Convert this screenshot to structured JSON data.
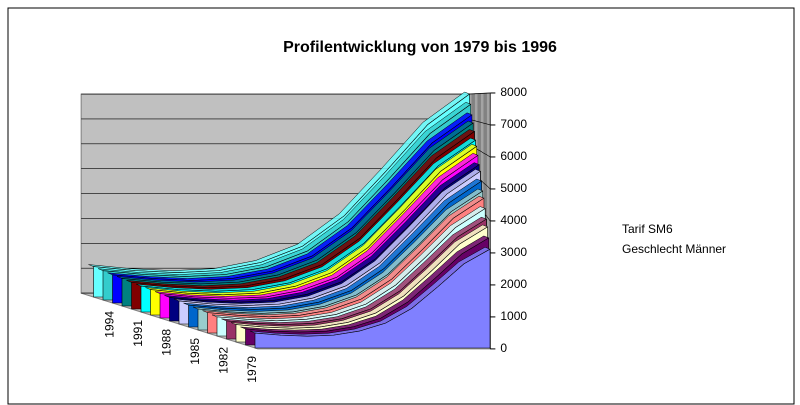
{
  "chart_data": {
    "type": "area3d",
    "title": "Profilentwicklung von 1979 bis 1996",
    "annotations": [
      "Tarif SM6",
      "Geschlecht Männer"
    ],
    "categories": [
      null,
      null,
      null,
      null,
      null,
      null,
      null,
      null,
      null,
      null
    ],
    "depth_categories": [
      "1979",
      null,
      null,
      "1982",
      null,
      null,
      "1985",
      null,
      null,
      "1988",
      null,
      null,
      "1991",
      null,
      null,
      "1994",
      null,
      null
    ],
    "ylim": [
      0,
      8000
    ],
    "yticks": [
      0,
      1000,
      2000,
      3000,
      4000,
      5000,
      6000,
      7000,
      8000
    ],
    "grid": true,
    "series": [
      {
        "color": "#8080ff",
        "values": [
          470,
          400,
          370,
          400,
          530,
          780,
          1240,
          1920,
          2640,
          3100
        ]
      },
      {
        "color": "#660066",
        "values": [
          510,
          440,
          410,
          440,
          580,
          850,
          1360,
          2110,
          2890,
          3400
        ]
      },
      {
        "color": "#ffffcc",
        "values": [
          560,
          480,
          440,
          480,
          630,
          930,
          1480,
          2290,
          3150,
          3700
        ]
      },
      {
        "color": "#993366",
        "values": [
          590,
          510,
          470,
          510,
          660,
          980,
          1560,
          2420,
          3320,
          3900
        ]
      },
      {
        "color": "#ccffff",
        "values": [
          630,
          550,
          500,
          550,
          710,
          1050,
          1680,
          2600,
          3570,
          4200
        ]
      },
      {
        "color": "#ff8080",
        "values": [
          680,
          590,
          540,
          590,
          770,
          1130,
          1800,
          2790,
          3830,
          4500
        ]
      },
      {
        "color": "#99cccc",
        "values": [
          710,
          610,
          560,
          610,
          800,
          1180,
          1880,
          2910,
          4000,
          4700
        ]
      },
      {
        "color": "#0066cc",
        "values": [
          750,
          650,
          600,
          650,
          850,
          1250,
          2000,
          3100,
          4250,
          5000
        ]
      },
      {
        "color": "#ccccff",
        "values": [
          800,
          690,
          640,
          690,
          900,
          1330,
          2120,
          3290,
          4510,
          5300
        ]
      },
      {
        "color": "#000080",
        "values": [
          830,
          720,
          660,
          720,
          940,
          1380,
          2200,
          3410,
          4680,
          5500
        ]
      },
      {
        "color": "#ff00ff",
        "values": [
          870,
          750,
          700,
          750,
          990,
          1450,
          2320,
          3600,
          4930,
          5800
        ]
      },
      {
        "color": "#ffff00",
        "values": [
          920,
          790,
          730,
          790,
          1040,
          1530,
          2440,
          3780,
          5190,
          6100
        ]
      },
      {
        "color": "#00ffff",
        "values": [
          950,
          820,
          760,
          820,
          1070,
          1580,
          2520,
          3910,
          5360,
          6300
        ]
      },
      {
        "color": "#800000",
        "values": [
          990,
          860,
          790,
          860,
          1120,
          1650,
          2640,
          4090,
          5610,
          6600
        ]
      },
      {
        "color": "#008080",
        "values": [
          1040,
          900,
          830,
          900,
          1170,
          1730,
          2760,
          4280,
          5870,
          6900
        ]
      },
      {
        "color": "#0000ff",
        "values": [
          1080,
          940,
          860,
          940,
          1220,
          1800,
          2880,
          4460,
          6120,
          7200
        ]
      },
      {
        "color": "#33cccc",
        "values": [
          1140,
          990,
          910,
          990,
          1290,
          1900,
          3040,
          4710,
          6460,
          7600
        ]
      },
      {
        "color": "#66ffff",
        "values": [
          1200,
          1040,
          960,
          1040,
          1360,
          2000,
          3200,
          4960,
          6800,
          8000
        ]
      }
    ]
  }
}
